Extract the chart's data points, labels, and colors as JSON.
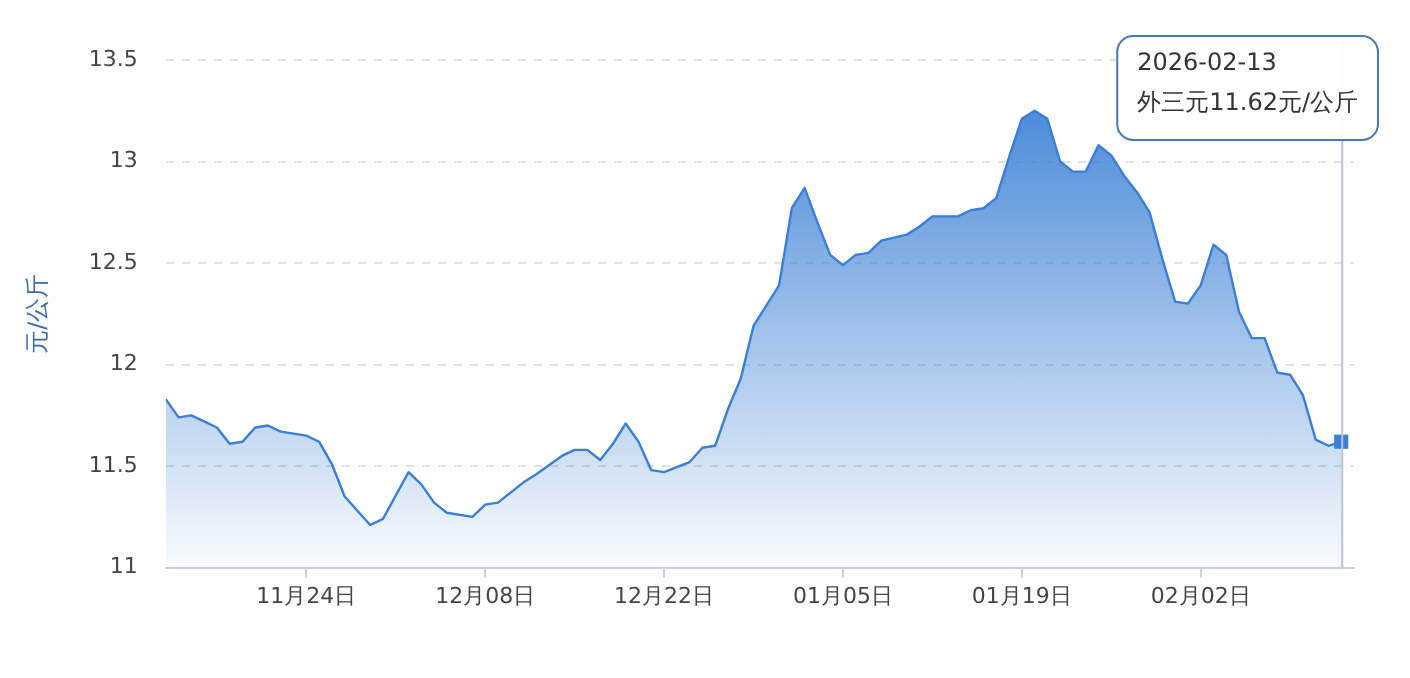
{
  "chart_data": {
    "type": "area",
    "ylabel": "元/公斤",
    "x": [
      "2025-11-13",
      "2025-11-14",
      "2025-11-15",
      "2025-11-16",
      "2025-11-17",
      "2025-11-18",
      "2025-11-19",
      "2025-11-20",
      "2025-11-21",
      "2025-11-22",
      "2025-11-24",
      "2025-11-25",
      "2025-11-26",
      "2025-11-27",
      "2025-11-29",
      "2025-11-30",
      "2025-12-02",
      "2025-12-03",
      "2025-12-04",
      "2025-12-05",
      "2025-12-07",
      "2025-12-08",
      "2025-12-09",
      "2025-12-11",
      "2025-12-12",
      "2025-12-14",
      "2025-12-15",
      "2025-12-16",
      "2025-12-17",
      "2025-12-18",
      "2025-12-19",
      "2025-12-20",
      "2025-12-21",
      "2025-12-22",
      "2025-12-24",
      "2025-12-25",
      "2025-12-26",
      "2025-12-27",
      "2025-12-28",
      "2025-12-29",
      "2025-12-30",
      "2025-12-31",
      "2026-01-01",
      "2026-01-02",
      "2026-01-03",
      "2026-01-04",
      "2026-01-05",
      "2026-01-06",
      "2026-01-07",
      "2026-01-08",
      "2026-01-10",
      "2026-01-11",
      "2026-01-12",
      "2026-01-14",
      "2026-01-15",
      "2026-01-16",
      "2026-01-17",
      "2026-01-18",
      "2026-01-19",
      "2026-01-20",
      "2026-01-21",
      "2026-01-22",
      "2026-01-23",
      "2026-01-24",
      "2026-01-25",
      "2026-01-26",
      "2026-01-27",
      "2026-01-28",
      "2026-01-29",
      "2026-01-30",
      "2026-01-31",
      "2026-02-01",
      "2026-02-02",
      "2026-02-03",
      "2026-02-04",
      "2026-02-05",
      "2026-02-06",
      "2026-02-07",
      "2026-02-08",
      "2026-02-09",
      "2026-02-10",
      "2026-02-11",
      "2026-02-12",
      "2026-02-13"
    ],
    "series": [
      {
        "color": "#3a7fd5",
        "values": [
          11.83,
          11.74,
          11.75,
          11.72,
          11.69,
          11.61,
          11.62,
          11.69,
          11.7,
          11.67,
          11.65,
          11.62,
          11.51,
          11.35,
          11.21,
          11.24,
          11.47,
          11.41,
          11.32,
          11.27,
          11.25,
          11.31,
          11.32,
          11.42,
          11.46,
          11.55,
          11.58,
          11.58,
          11.53,
          11.61,
          11.71,
          11.62,
          11.48,
          11.47,
          11.52,
          11.59,
          11.6,
          11.78,
          11.93,
          12.19,
          12.29,
          12.39,
          12.77,
          12.87,
          12.7,
          12.54,
          12.49,
          12.54,
          12.55,
          12.61,
          12.64,
          12.68,
          12.73,
          12.73,
          12.76,
          12.77,
          12.82,
          13.02,
          13.21,
          13.25,
          13.21,
          13.0,
          12.95,
          12.95,
          13.08,
          13.03,
          12.93,
          12.85,
          12.75,
          12.52,
          12.31,
          12.3,
          12.39,
          12.59,
          12.54,
          12.26,
          12.13,
          12.13,
          11.96,
          11.95,
          11.85,
          11.63,
          11.6,
          11.62
        ]
      }
    ],
    "xlim": [
      "2025-11-13",
      "2026-02-14"
    ],
    "xticks": [
      {
        "value": "2025-11-24",
        "label": "11月24日"
      },
      {
        "value": "2025-12-08",
        "label": "12月08日"
      },
      {
        "value": "2025-12-22",
        "label": "12月22日"
      },
      {
        "value": "2026-01-05",
        "label": "01月05日"
      },
      {
        "value": "2026-01-19",
        "label": "01月19日"
      },
      {
        "value": "2026-02-02",
        "label": "02月02日"
      }
    ],
    "ylim": [
      11,
      13.5
    ],
    "yticks": [
      11,
      11.5,
      12,
      12.5,
      13,
      13.5
    ],
    "grid": "y",
    "marker": "none",
    "line_style": "solid",
    "legend": false,
    "ref_lines": [
      {
        "axis": "x",
        "value": "2026-02-13",
        "color": "#b8c2d0"
      }
    ],
    "annotations": [
      "2026-02-13\n外三元11.62元/公斤"
    ]
  }
}
